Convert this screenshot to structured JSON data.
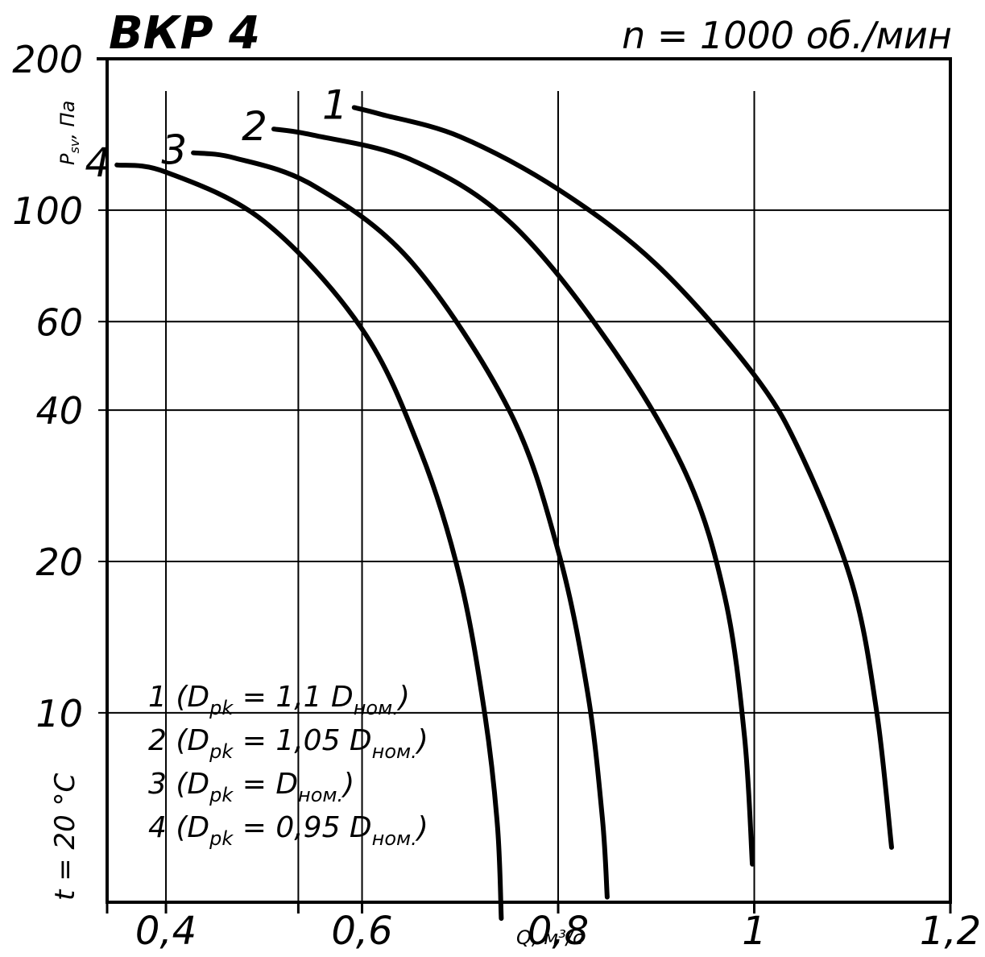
{
  "chart_data": {
    "type": "line",
    "title": "ВКР 4",
    "subtitle": "n = 1000 об./мин",
    "ylabel_main": "P",
    "ylabel_sub": "sv",
    "ylabel_unit": ", Па",
    "xlabel": "Q, м³/с",
    "temperature_label": "t = 20 °C",
    "x_scale": "linear",
    "y_scale": "log",
    "xlim": [
      0.34,
      1.2
    ],
    "ylim": [
      4.2,
      200
    ],
    "x_ticks": [
      {
        "value": 0.4,
        "label": "0,4"
      },
      {
        "value": 0.6,
        "label": "0,6"
      },
      {
        "value": 0.8,
        "label": "0,8"
      },
      {
        "value": 1.0,
        "label": "1"
      },
      {
        "value": 1.2,
        "label": "1,2"
      }
    ],
    "y_ticks": [
      {
        "value": 200,
        "label": "200"
      },
      {
        "value": 100,
        "label": "100"
      },
      {
        "value": 60,
        "label": "60"
      },
      {
        "value": 40,
        "label": "40"
      },
      {
        "value": 20,
        "label": "20"
      },
      {
        "value": 10,
        "label": "10"
      }
    ],
    "x_grid": [
      0.4,
      0.535,
      0.6,
      0.8,
      1.0
    ],
    "y_grid": [
      100,
      60,
      40,
      20,
      10
    ],
    "series": [
      {
        "name": "1",
        "x": [
          0.592,
          0.62,
          0.7,
          0.8,
          0.9,
          1.0,
          1.05,
          1.1,
          1.125,
          1.14
        ],
        "y": [
          160,
          155,
          140,
          110,
          78,
          47,
          32,
          18,
          10,
          5.4
        ]
      },
      {
        "name": "2",
        "x": [
          0.51,
          0.55,
          0.65,
          0.75,
          0.85,
          0.93,
          0.97,
          0.99,
          0.998
        ],
        "y": [
          145,
          141,
          126,
          95,
          55,
          30,
          17,
          9,
          5.0
        ]
      },
      {
        "name": "3",
        "x": [
          0.428,
          0.47,
          0.55,
          0.65,
          0.75,
          0.8,
          0.83,
          0.845,
          0.85
        ],
        "y": [
          130,
          127,
          112,
          79,
          40,
          21,
          11,
          6.2,
          4.3
        ]
      },
      {
        "name": "4",
        "x": [
          0.35,
          0.4,
          0.5,
          0.6,
          0.66,
          0.7,
          0.725,
          0.738,
          0.742
        ],
        "y": [
          123,
          119,
          95,
          58,
          33,
          18.5,
          10,
          6.0,
          3.9
        ]
      }
    ],
    "curve_labels": [
      "1",
      "2",
      "3",
      "4"
    ],
    "legend": {
      "placement": "bottom-left",
      "entries": [
        {
          "num": "1",
          "sub": "pk",
          "rhs": "= 1,1 D",
          "rhs_sub": "ном."
        },
        {
          "num": "2",
          "sub": "pk",
          "rhs": "= 1,05 D",
          "rhs_sub": "ном."
        },
        {
          "num": "3",
          "sub": "pk",
          "rhs": "= D",
          "rhs_sub": "ном."
        },
        {
          "num": "4",
          "sub": "pk",
          "rhs": "= 0,95 D",
          "rhs_sub": "ном."
        }
      ]
    }
  }
}
